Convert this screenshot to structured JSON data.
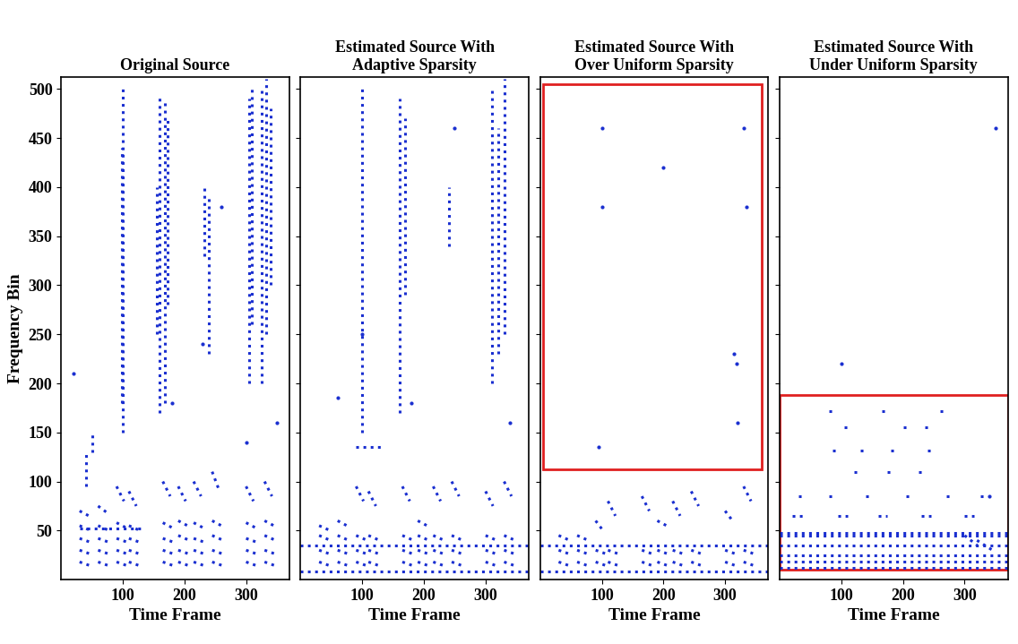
{
  "y_label": "Frequency Bin",
  "chart_data": [
    {
      "type": "scatter",
      "title": "Original Source",
      "x_label": "Time Frame",
      "xlim": [
        0,
        370
      ],
      "ylim": [
        0,
        512
      ],
      "xticks": [
        100,
        200,
        300
      ],
      "yticks": [
        50,
        100,
        150,
        200,
        250,
        300,
        350,
        400,
        450,
        500
      ],
      "tick_labels": true,
      "color": "#1a2fd0",
      "line_style": "dotted",
      "segments": [
        [
          100,
          150,
          100,
          500
        ],
        [
          98,
          180,
          98,
          440
        ],
        [
          160,
          170,
          160,
          495
        ],
        [
          168,
          180,
          168,
          490
        ],
        [
          172,
          280,
          172,
          470
        ],
        [
          155,
          250,
          155,
          400
        ],
        [
          233,
          330,
          233,
          400
        ],
        [
          240,
          230,
          240,
          390
        ],
        [
          305,
          200,
          305,
          490
        ],
        [
          310,
          260,
          310,
          500
        ],
        [
          325,
          200,
          325,
          500
        ],
        [
          333,
          250,
          333,
          510
        ],
        [
          340,
          300,
          340,
          480
        ],
        [
          30,
          18,
          48,
          14
        ],
        [
          30,
          30,
          48,
          26
        ],
        [
          30,
          42,
          48,
          38
        ],
        [
          30,
          55,
          48,
          50
        ],
        [
          30,
          70,
          45,
          65
        ],
        [
          60,
          18,
          78,
          14
        ],
        [
          60,
          30,
          78,
          26
        ],
        [
          60,
          42,
          78,
          38
        ],
        [
          60,
          55,
          78,
          50
        ],
        [
          60,
          75,
          75,
          68
        ],
        [
          90,
          18,
          108,
          14
        ],
        [
          90,
          30,
          108,
          26
        ],
        [
          90,
          42,
          108,
          38
        ],
        [
          90,
          58,
          108,
          52
        ],
        [
          90,
          95,
          102,
          80
        ],
        [
          110,
          18,
          128,
          14
        ],
        [
          110,
          30,
          128,
          26
        ],
        [
          110,
          42,
          128,
          38
        ],
        [
          110,
          55,
          128,
          50
        ],
        [
          110,
          90,
          122,
          75
        ],
        [
          165,
          18,
          183,
          14
        ],
        [
          165,
          30,
          183,
          26
        ],
        [
          165,
          42,
          183,
          38
        ],
        [
          165,
          58,
          183,
          52
        ],
        [
          165,
          100,
          177,
          85
        ],
        [
          190,
          18,
          208,
          14
        ],
        [
          190,
          30,
          208,
          26
        ],
        [
          190,
          45,
          208,
          40
        ],
        [
          190,
          60,
          208,
          54
        ],
        [
          190,
          95,
          202,
          80
        ],
        [
          215,
          18,
          233,
          14
        ],
        [
          215,
          30,
          233,
          26
        ],
        [
          215,
          42,
          233,
          38
        ],
        [
          215,
          58,
          233,
          52
        ],
        [
          215,
          100,
          227,
          85
        ],
        [
          245,
          18,
          263,
          14
        ],
        [
          245,
          30,
          263,
          26
        ],
        [
          245,
          45,
          263,
          40
        ],
        [
          245,
          60,
          263,
          54
        ],
        [
          245,
          110,
          257,
          90
        ],
        [
          300,
          18,
          318,
          14
        ],
        [
          300,
          30,
          318,
          26
        ],
        [
          300,
          42,
          318,
          38
        ],
        [
          300,
          58,
          318,
          52
        ],
        [
          300,
          95,
          312,
          80
        ],
        [
          330,
          18,
          348,
          14
        ],
        [
          330,
          30,
          348,
          26
        ],
        [
          330,
          45,
          348,
          40
        ],
        [
          330,
          60,
          348,
          54
        ],
        [
          330,
          100,
          342,
          85
        ],
        [
          30,
          52,
          130,
          52
        ],
        [
          40,
          95,
          40,
          130
        ],
        [
          50,
          130,
          50,
          150
        ]
      ],
      "points": {
        "x": [
          20,
          230,
          260,
          180,
          300,
          350
        ],
        "y": [
          210,
          240,
          380,
          180,
          140,
          160
        ]
      }
    },
    {
      "type": "scatter",
      "title": "Estimated Source With\nAdaptive Sparsity",
      "x_label": "Time Frame",
      "xlim": [
        0,
        370
      ],
      "ylim": [
        0,
        512
      ],
      "xticks": [
        100,
        200,
        300
      ],
      "yticks": [
        50,
        100,
        150,
        200,
        250,
        300,
        350,
        400,
        450,
        500
      ],
      "tick_labels": "x",
      "color": "#1a2fd0",
      "line_style": "dotted",
      "segments": [
        [
          100,
          150,
          100,
          500
        ],
        [
          160,
          170,
          160,
          490
        ],
        [
          170,
          290,
          170,
          470
        ],
        [
          240,
          340,
          240,
          400
        ],
        [
          310,
          200,
          310,
          500
        ],
        [
          330,
          250,
          330,
          510
        ],
        [
          320,
          230,
          320,
          460
        ],
        [
          0,
          35,
          370,
          35
        ],
        [
          0,
          8,
          370,
          8
        ],
        [
          90,
          135,
          130,
          135
        ],
        [
          30,
          18,
          48,
          14
        ],
        [
          30,
          30,
          48,
          26
        ],
        [
          30,
          45,
          48,
          40
        ],
        [
          30,
          55,
          48,
          50
        ],
        [
          60,
          18,
          78,
          14
        ],
        [
          60,
          30,
          78,
          26
        ],
        [
          60,
          45,
          78,
          40
        ],
        [
          60,
          60,
          78,
          54
        ],
        [
          90,
          18,
          108,
          14
        ],
        [
          90,
          30,
          108,
          26
        ],
        [
          90,
          45,
          108,
          40
        ],
        [
          90,
          95,
          102,
          80
        ],
        [
          110,
          18,
          128,
          14
        ],
        [
          110,
          30,
          128,
          26
        ],
        [
          110,
          45,
          128,
          40
        ],
        [
          110,
          90,
          122,
          75
        ],
        [
          165,
          18,
          183,
          14
        ],
        [
          165,
          30,
          183,
          26
        ],
        [
          165,
          45,
          183,
          40
        ],
        [
          165,
          95,
          177,
          80
        ],
        [
          190,
          18,
          208,
          14
        ],
        [
          190,
          30,
          208,
          26
        ],
        [
          190,
          45,
          208,
          40
        ],
        [
          190,
          60,
          208,
          54
        ],
        [
          215,
          18,
          233,
          14
        ],
        [
          215,
          30,
          233,
          26
        ],
        [
          215,
          45,
          233,
          40
        ],
        [
          215,
          95,
          227,
          80
        ],
        [
          245,
          18,
          263,
          14
        ],
        [
          245,
          30,
          263,
          26
        ],
        [
          245,
          45,
          263,
          40
        ],
        [
          245,
          100,
          257,
          85
        ],
        [
          300,
          18,
          318,
          14
        ],
        [
          300,
          30,
          318,
          26
        ],
        [
          300,
          45,
          318,
          40
        ],
        [
          300,
          90,
          312,
          75
        ],
        [
          330,
          18,
          348,
          14
        ],
        [
          330,
          30,
          348,
          26
        ],
        [
          330,
          45,
          348,
          40
        ],
        [
          330,
          100,
          342,
          85
        ]
      ],
      "points": {
        "x": [
          60,
          250,
          340,
          180,
          100
        ],
        "y": [
          185,
          460,
          160,
          180,
          250
        ]
      }
    },
    {
      "type": "scatter",
      "title": "Estimated Source With\nOver Uniform Sparsity",
      "x_label": "Time Frame",
      "xlim": [
        0,
        370
      ],
      "ylim": [
        0,
        512
      ],
      "xticks": [
        100,
        200,
        300
      ],
      "yticks": [
        50,
        100,
        150,
        200,
        250,
        300,
        350,
        400,
        450,
        500
      ],
      "tick_labels": "x",
      "color": "#1a2fd0",
      "line_style": "dotted",
      "segments": [
        [
          0,
          35,
          370,
          35
        ],
        [
          0,
          8,
          370,
          8
        ],
        [
          30,
          18,
          48,
          14
        ],
        [
          30,
          30,
          48,
          26
        ],
        [
          30,
          45,
          48,
          40
        ],
        [
          60,
          18,
          78,
          14
        ],
        [
          60,
          30,
          78,
          26
        ],
        [
          60,
          45,
          78,
          40
        ],
        [
          90,
          18,
          108,
          14
        ],
        [
          90,
          30,
          108,
          26
        ],
        [
          90,
          60,
          102,
          50
        ],
        [
          110,
          18,
          128,
          14
        ],
        [
          110,
          30,
          128,
          26
        ],
        [
          110,
          80,
          122,
          65
        ],
        [
          165,
          18,
          183,
          14
        ],
        [
          165,
          30,
          183,
          26
        ],
        [
          165,
          85,
          177,
          70
        ],
        [
          190,
          18,
          208,
          14
        ],
        [
          190,
          30,
          208,
          26
        ],
        [
          190,
          60,
          208,
          54
        ],
        [
          215,
          18,
          233,
          14
        ],
        [
          215,
          30,
          233,
          26
        ],
        [
          215,
          80,
          227,
          65
        ],
        [
          245,
          18,
          263,
          14
        ],
        [
          245,
          30,
          263,
          26
        ],
        [
          245,
          90,
          257,
          75
        ],
        [
          300,
          18,
          318,
          14
        ],
        [
          300,
          30,
          318,
          26
        ],
        [
          300,
          70,
          312,
          60
        ],
        [
          330,
          18,
          348,
          14
        ],
        [
          330,
          30,
          348,
          26
        ],
        [
          330,
          95,
          342,
          80
        ]
      ],
      "points": {
        "x": [
          100,
          100,
          330,
          335,
          315,
          318,
          95,
          320,
          200
        ],
        "y": [
          460,
          380,
          460,
          380,
          230,
          220,
          135,
          160,
          420
        ]
      },
      "boxes": [
        {
          "x": [
            5,
            360
          ],
          "y": [
            112,
            505
          ],
          "color": "#e02020"
        }
      ]
    },
    {
      "type": "scatter",
      "title": "Estimated Source With\nUnder Uniform Sparsity",
      "x_label": "Time Frame",
      "xlim": [
        0,
        370
      ],
      "ylim": [
        0,
        512
      ],
      "xticks": [
        100,
        200,
        300
      ],
      "yticks": [
        50,
        100,
        150,
        200,
        250,
        300,
        350,
        400,
        450,
        500
      ],
      "tick_labels": "x",
      "color": "#1a2fd0",
      "line_style": "dotted",
      "segments": [
        [
          0,
          12,
          370,
          12
        ],
        [
          0,
          18,
          370,
          18
        ],
        [
          0,
          25,
          370,
          25
        ],
        [
          0,
          35,
          370,
          35
        ],
        [
          0,
          45,
          370,
          45
        ],
        [
          0,
          48,
          370,
          48
        ],
        [
          80,
          172,
          90,
          172
        ],
        [
          165,
          172,
          175,
          172
        ],
        [
          260,
          172,
          270,
          172
        ],
        [
          105,
          155,
          115,
          155
        ],
        [
          200,
          155,
          210,
          155
        ],
        [
          235,
          155,
          245,
          155
        ],
        [
          85,
          132,
          95,
          132
        ],
        [
          130,
          132,
          140,
          132
        ],
        [
          180,
          132,
          190,
          132
        ],
        [
          240,
          132,
          250,
          132
        ],
        [
          120,
          110,
          130,
          110
        ],
        [
          175,
          110,
          185,
          110
        ],
        [
          225,
          110,
          235,
          110
        ],
        [
          30,
          85,
          40,
          85
        ],
        [
          80,
          85,
          90,
          85
        ],
        [
          140,
          85,
          150,
          85
        ],
        [
          205,
          85,
          215,
          85
        ],
        [
          270,
          85,
          280,
          85
        ],
        [
          325,
          85,
          335,
          85
        ],
        [
          20,
          65,
          40,
          65
        ],
        [
          95,
          65,
          110,
          65
        ],
        [
          160,
          65,
          175,
          65
        ],
        [
          230,
          65,
          245,
          65
        ],
        [
          300,
          65,
          315,
          65
        ],
        [
          320,
          40,
          345,
          30
        ],
        [
          300,
          45,
          320,
          35
        ]
      ],
      "points": {
        "x": [
          350,
          100,
          340
        ],
        "y": [
          460,
          220,
          85
        ]
      },
      "boxes": [
        {
          "x": [
            0,
            370
          ],
          "y": [
            10,
            188
          ],
          "color": "#e02020"
        }
      ]
    }
  ]
}
